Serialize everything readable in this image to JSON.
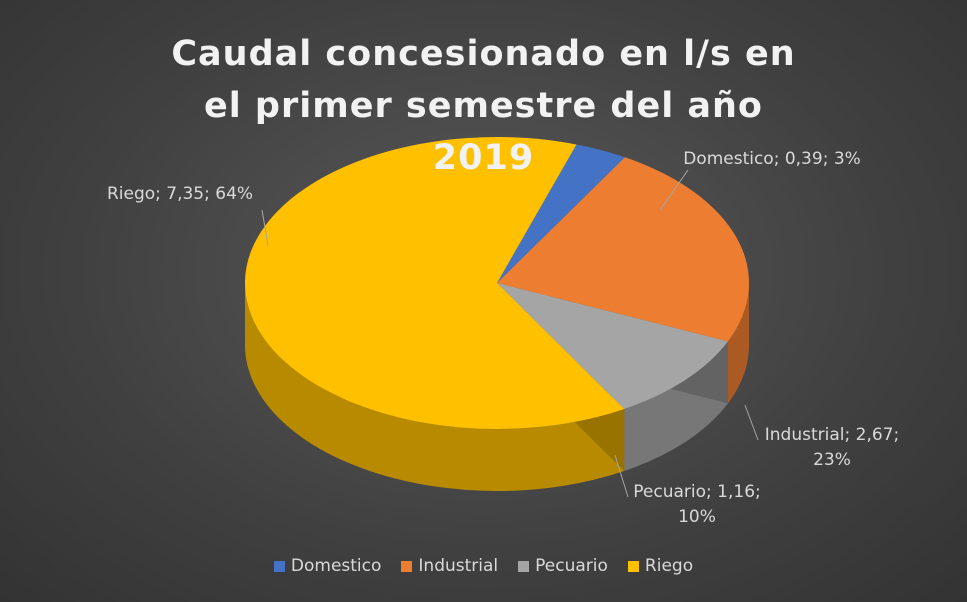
{
  "chart_data": {
    "type": "pie",
    "title": "Caudal concesionado en l/s en el primer semestre del año 2019",
    "categories": [
      "Domestico",
      "Industrial",
      "Pecuario",
      "Riego"
    ],
    "values": [
      0.39,
      2.67,
      1.16,
      7.35
    ],
    "value_labels": [
      "Domestico; 0,39; 3%",
      "Industrial; 2,67; 23%",
      "Pecuario; 1,16; 10%",
      "Riego; 7,35; 64%"
    ],
    "colors": [
      "#4472c4",
      "#ed7d31",
      "#a5a5a5",
      "#ffc000"
    ],
    "legend": "bottom"
  }
}
